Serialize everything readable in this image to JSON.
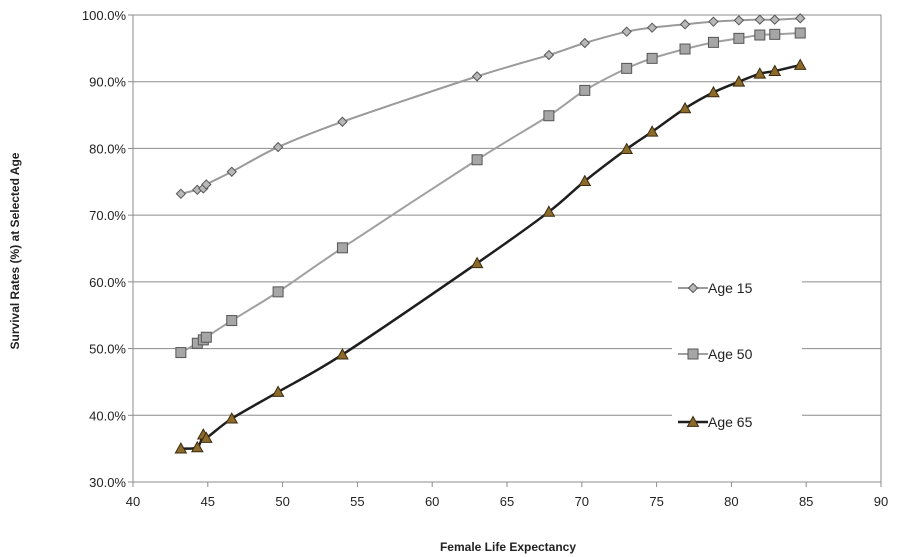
{
  "chart_data": {
    "type": "line",
    "title": "",
    "xlabel": "Female Life Expectancy",
    "ylabel": "Survival Rates (%) at Selected Age",
    "xlim": [
      40,
      90
    ],
    "ylim": [
      30,
      100
    ],
    "x_ticks": [
      "40",
      "45",
      "50",
      "55",
      "60",
      "65",
      "70",
      "75",
      "80",
      "85",
      "90"
    ],
    "y_ticks": [
      "30.0%",
      "40.0%",
      "50.0%",
      "60.0%",
      "70.0%",
      "80.0%",
      "90.0%",
      "100.0%"
    ],
    "grid": "horizontal",
    "legend_position": "right",
    "series": [
      {
        "name": "Age 15",
        "marker": "diamond",
        "color": "#9a9a9a",
        "marker_fill": "#b8b8b8",
        "x": [
          43.2,
          44.3,
          44.7,
          44.9,
          46.6,
          49.7,
          54.0,
          63.0,
          67.8,
          70.2,
          73.0,
          74.7,
          76.9,
          78.8,
          80.5,
          81.9,
          82.9,
          84.6
        ],
        "y": [
          73.2,
          73.8,
          74.0,
          74.6,
          76.5,
          80.2,
          84.0,
          90.8,
          94.0,
          95.8,
          97.5,
          98.1,
          98.6,
          99.0,
          99.2,
          99.3,
          99.3,
          99.5
        ]
      },
      {
        "name": "Age 50",
        "marker": "square",
        "color": "#a0a0a0",
        "marker_fill": "#a6a6a6",
        "x": [
          43.2,
          44.3,
          44.7,
          44.9,
          46.6,
          49.7,
          54.0,
          63.0,
          67.8,
          70.2,
          73.0,
          74.7,
          76.9,
          78.8,
          80.5,
          81.9,
          82.9,
          84.6
        ],
        "y": [
          49.4,
          50.8,
          51.3,
          51.7,
          54.2,
          58.5,
          65.1,
          78.3,
          84.9,
          88.7,
          92.0,
          93.5,
          94.9,
          95.9,
          96.5,
          97.0,
          97.1,
          97.3
        ]
      },
      {
        "name": "Age 65",
        "marker": "triangle",
        "color": "#1e1e1e",
        "marker_fill": "#8c6a2a",
        "x": [
          43.2,
          44.3,
          44.7,
          44.9,
          46.6,
          49.7,
          54.0,
          63.0,
          67.8,
          70.2,
          73.0,
          74.7,
          76.9,
          78.8,
          80.5,
          81.9,
          82.9,
          84.6
        ],
        "y": [
          35.0,
          35.2,
          37.1,
          36.6,
          39.5,
          43.5,
          49.1,
          62.8,
          70.5,
          75.1,
          79.9,
          82.5,
          86.0,
          88.4,
          90.0,
          91.2,
          91.6,
          92.5
        ]
      }
    ]
  }
}
